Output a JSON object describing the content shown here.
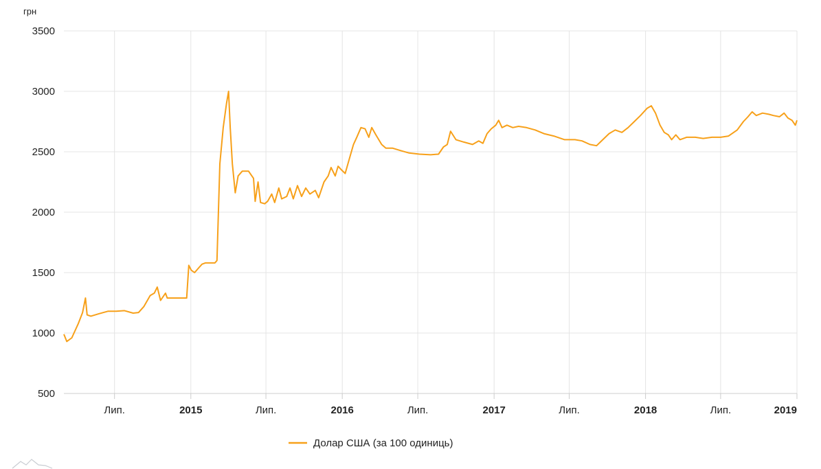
{
  "chart_data": {
    "type": "line",
    "unit_label": "грн",
    "ylim": [
      500,
      3500
    ],
    "y_ticks": [
      500,
      1000,
      1500,
      2000,
      2500,
      3000,
      3500
    ],
    "xlim": [
      "2014-03-01",
      "2019-01-01"
    ],
    "x_ticks": [
      {
        "date": "2014-07-01",
        "label": "Лип.",
        "major": false
      },
      {
        "date": "2015-01-01",
        "label": "2015",
        "major": true
      },
      {
        "date": "2015-07-01",
        "label": "Лип.",
        "major": false
      },
      {
        "date": "2016-01-01",
        "label": "2016",
        "major": true
      },
      {
        "date": "2016-07-01",
        "label": "Лип.",
        "major": false
      },
      {
        "date": "2017-01-01",
        "label": "2017",
        "major": true
      },
      {
        "date": "2017-07-01",
        "label": "Лип.",
        "major": false
      },
      {
        "date": "2018-01-01",
        "label": "2018",
        "major": true
      },
      {
        "date": "2018-07-01",
        "label": "Лип.",
        "major": false
      },
      {
        "date": "2019-01-01",
        "label": "2019",
        "major": true
      }
    ],
    "grid": true,
    "legend_position": "bottom-center",
    "series": [
      {
        "name": "Долар США (за 100 одиниць)",
        "color": "#f7a019",
        "points": [
          [
            "2014-03-01",
            990
          ],
          [
            "2014-03-08",
            930
          ],
          [
            "2014-03-20",
            960
          ],
          [
            "2014-04-05",
            1080
          ],
          [
            "2014-04-15",
            1170
          ],
          [
            "2014-04-22",
            1290
          ],
          [
            "2014-04-26",
            1150
          ],
          [
            "2014-05-05",
            1140
          ],
          [
            "2014-05-25",
            1160
          ],
          [
            "2014-06-15",
            1180
          ],
          [
            "2014-07-05",
            1180
          ],
          [
            "2014-07-25",
            1185
          ],
          [
            "2014-08-15",
            1165
          ],
          [
            "2014-08-28",
            1170
          ],
          [
            "2014-09-10",
            1220
          ],
          [
            "2014-09-25",
            1310
          ],
          [
            "2014-10-05",
            1330
          ],
          [
            "2014-10-12",
            1380
          ],
          [
            "2014-10-20",
            1270
          ],
          [
            "2014-11-01",
            1330
          ],
          [
            "2014-11-05",
            1290
          ],
          [
            "2014-11-25",
            1290
          ],
          [
            "2014-12-10",
            1290
          ],
          [
            "2014-12-22",
            1290
          ],
          [
            "2014-12-27",
            1560
          ],
          [
            "2015-01-02",
            1520
          ],
          [
            "2015-01-10",
            1500
          ],
          [
            "2015-01-20",
            1540
          ],
          [
            "2015-01-28",
            1570
          ],
          [
            "2015-02-05",
            1580
          ],
          [
            "2015-02-15",
            1580
          ],
          [
            "2015-02-28",
            1580
          ],
          [
            "2015-03-05",
            1600
          ],
          [
            "2015-03-12",
            2400
          ],
          [
            "2015-03-20",
            2700
          ],
          [
            "2015-03-28",
            2900
          ],
          [
            "2015-04-02",
            3000
          ],
          [
            "2015-04-06",
            2700
          ],
          [
            "2015-04-11",
            2400
          ],
          [
            "2015-04-18",
            2160
          ],
          [
            "2015-04-25",
            2300
          ],
          [
            "2015-05-05",
            2340
          ],
          [
            "2015-05-20",
            2340
          ],
          [
            "2015-06-01",
            2280
          ],
          [
            "2015-06-05",
            2090
          ],
          [
            "2015-06-12",
            2250
          ],
          [
            "2015-06-18",
            2080
          ],
          [
            "2015-06-28",
            2070
          ],
          [
            "2015-07-05",
            2090
          ],
          [
            "2015-07-15",
            2150
          ],
          [
            "2015-07-22",
            2080
          ],
          [
            "2015-08-01",
            2200
          ],
          [
            "2015-08-08",
            2110
          ],
          [
            "2015-08-20",
            2130
          ],
          [
            "2015-08-28",
            2200
          ],
          [
            "2015-09-05",
            2110
          ],
          [
            "2015-09-15",
            2220
          ],
          [
            "2015-09-25",
            2130
          ],
          [
            "2015-10-05",
            2200
          ],
          [
            "2015-10-15",
            2150
          ],
          [
            "2015-10-28",
            2180
          ],
          [
            "2015-11-05",
            2120
          ],
          [
            "2015-11-18",
            2250
          ],
          [
            "2015-11-28",
            2300
          ],
          [
            "2015-12-05",
            2370
          ],
          [
            "2015-12-15",
            2300
          ],
          [
            "2015-12-22",
            2380
          ],
          [
            "2015-12-30",
            2350
          ],
          [
            "2016-01-08",
            2320
          ],
          [
            "2016-01-18",
            2440
          ],
          [
            "2016-01-28",
            2560
          ],
          [
            "2016-02-05",
            2620
          ],
          [
            "2016-02-15",
            2700
          ],
          [
            "2016-02-25",
            2690
          ],
          [
            "2016-03-05",
            2620
          ],
          [
            "2016-03-12",
            2700
          ],
          [
            "2016-03-22",
            2640
          ],
          [
            "2016-04-05",
            2560
          ],
          [
            "2016-04-15",
            2530
          ],
          [
            "2016-05-01",
            2530
          ],
          [
            "2016-05-20",
            2510
          ],
          [
            "2016-06-10",
            2490
          ],
          [
            "2016-07-05",
            2480
          ],
          [
            "2016-08-01",
            2475
          ],
          [
            "2016-08-20",
            2480
          ],
          [
            "2016-09-01",
            2540
          ],
          [
            "2016-09-10",
            2560
          ],
          [
            "2016-09-18",
            2670
          ],
          [
            "2016-10-01",
            2600
          ],
          [
            "2016-10-20",
            2580
          ],
          [
            "2016-11-10",
            2560
          ],
          [
            "2016-11-25",
            2590
          ],
          [
            "2016-12-05",
            2570
          ],
          [
            "2016-12-15",
            2650
          ],
          [
            "2016-12-25",
            2690
          ],
          [
            "2017-01-05",
            2720
          ],
          [
            "2017-01-12",
            2760
          ],
          [
            "2017-01-20",
            2700
          ],
          [
            "2017-02-01",
            2720
          ],
          [
            "2017-02-15",
            2700
          ],
          [
            "2017-03-01",
            2710
          ],
          [
            "2017-03-20",
            2700
          ],
          [
            "2017-04-10",
            2680
          ],
          [
            "2017-05-01",
            2650
          ],
          [
            "2017-05-25",
            2630
          ],
          [
            "2017-06-20",
            2600
          ],
          [
            "2017-07-15",
            2600
          ],
          [
            "2017-08-01",
            2590
          ],
          [
            "2017-08-20",
            2560
          ],
          [
            "2017-09-05",
            2550
          ],
          [
            "2017-09-20",
            2600
          ],
          [
            "2017-10-05",
            2650
          ],
          [
            "2017-10-20",
            2680
          ],
          [
            "2017-11-05",
            2660
          ],
          [
            "2017-11-20",
            2700
          ],
          [
            "2017-12-05",
            2750
          ],
          [
            "2017-12-20",
            2800
          ],
          [
            "2018-01-05",
            2860
          ],
          [
            "2018-01-15",
            2880
          ],
          [
            "2018-01-25",
            2820
          ],
          [
            "2018-02-05",
            2720
          ],
          [
            "2018-02-15",
            2660
          ],
          [
            "2018-02-25",
            2640
          ],
          [
            "2018-03-05",
            2600
          ],
          [
            "2018-03-15",
            2640
          ],
          [
            "2018-03-25",
            2600
          ],
          [
            "2018-04-10",
            2620
          ],
          [
            "2018-05-01",
            2620
          ],
          [
            "2018-05-20",
            2610
          ],
          [
            "2018-06-10",
            2620
          ],
          [
            "2018-07-01",
            2620
          ],
          [
            "2018-07-20",
            2630
          ],
          [
            "2018-08-10",
            2680
          ],
          [
            "2018-08-25",
            2750
          ],
          [
            "2018-09-05",
            2790
          ],
          [
            "2018-09-15",
            2830
          ],
          [
            "2018-09-25",
            2800
          ],
          [
            "2018-10-10",
            2820
          ],
          [
            "2018-10-25",
            2810
          ],
          [
            "2018-11-05",
            2800
          ],
          [
            "2018-11-20",
            2790
          ],
          [
            "2018-12-01",
            2820
          ],
          [
            "2018-12-10",
            2780
          ],
          [
            "2018-12-20",
            2760
          ],
          [
            "2018-12-28",
            2720
          ],
          [
            "2019-01-01",
            2760
          ]
        ]
      }
    ]
  }
}
